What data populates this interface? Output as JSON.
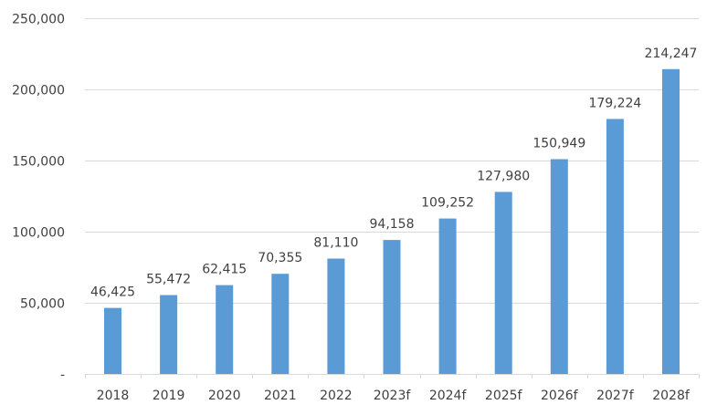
{
  "chart_data": {
    "type": "bar",
    "categories": [
      "2018",
      "2019",
      "2020",
      "2021",
      "2022",
      "2023f",
      "2024f",
      "2025f",
      "2026f",
      "2027f",
      "2028f"
    ],
    "values": [
      46425,
      55472,
      62415,
      70355,
      81110,
      94158,
      109252,
      127980,
      150949,
      179224,
      214247
    ],
    "data_labels": [
      "46,425",
      "55,472",
      "62,415",
      "70,355",
      "81,110",
      "94,158",
      "109,252",
      "127,980",
      "150,949",
      "179,224",
      "214,247"
    ],
    "y_tick_labels": [
      "-",
      "50,000",
      "100,000",
      "150,000",
      "200,000",
      "250,000"
    ],
    "y_ticks": [
      0,
      50000,
      100000,
      150000,
      200000,
      250000
    ],
    "ylim": [
      0,
      250000
    ],
    "title": "",
    "xlabel": "",
    "ylabel": "",
    "grid": true,
    "legend": "none",
    "bar_color": "#5b9bd5"
  }
}
